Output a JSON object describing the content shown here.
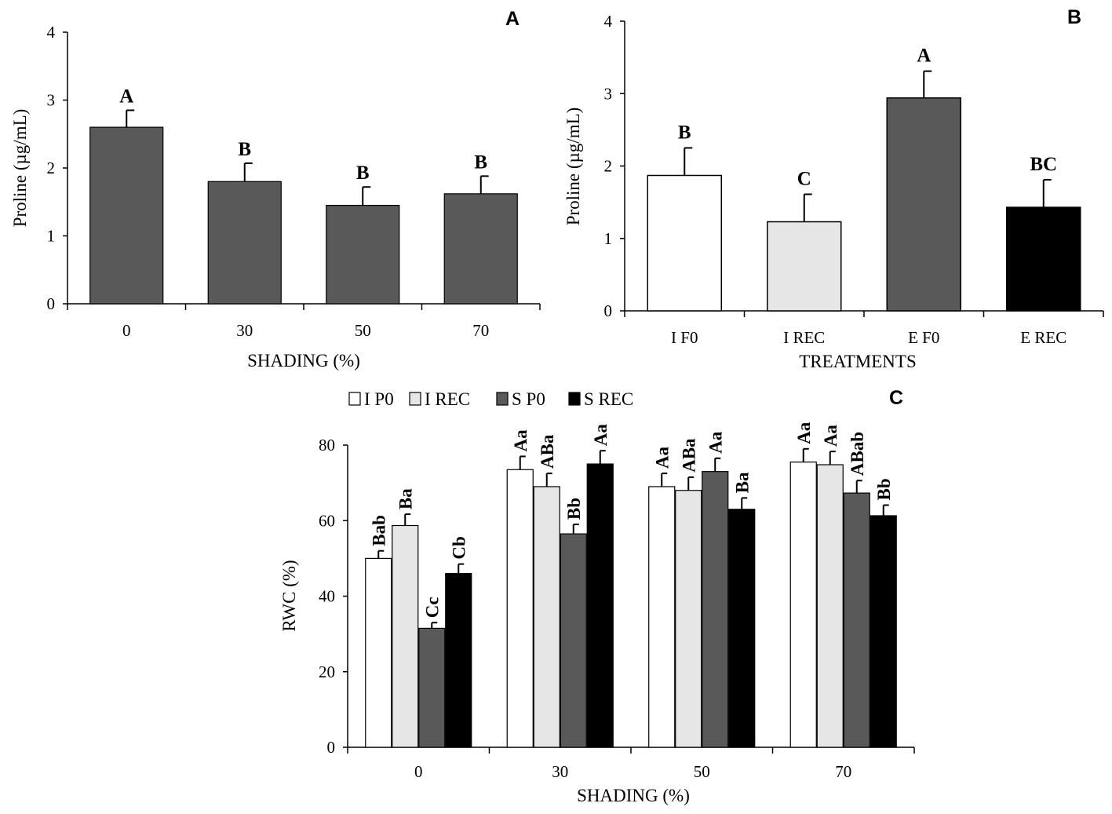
{
  "chart_data": [
    {
      "panel": "A",
      "type": "bar",
      "categories": [
        "0",
        "30",
        "50",
        "70"
      ],
      "values": [
        2.6,
        1.8,
        1.45,
        1.62
      ],
      "errors": [
        0.25,
        0.27,
        0.27,
        0.26
      ],
      "letters": [
        "A",
        "B",
        "B",
        "B"
      ],
      "xlabel": "SHADING (%)",
      "ylabel": "Proline (µg/mL)",
      "ylim": [
        0,
        4
      ],
      "yticks": [
        "0",
        "1",
        "2",
        "3",
        "4"
      ],
      "color": "#595959"
    },
    {
      "panel": "B",
      "type": "bar",
      "categories": [
        "I F0",
        "I REC",
        "E F0",
        "E REC"
      ],
      "values": [
        1.87,
        1.23,
        2.94,
        1.43
      ],
      "errors": [
        0.38,
        0.38,
        0.37,
        0.38
      ],
      "letters": [
        "B",
        "C",
        "A",
        "BC"
      ],
      "colors": [
        "#ffffff",
        "#e6e6e6",
        "#595959",
        "#000000"
      ],
      "xlabel": "TREATMENTS",
      "ylabel": "Proline (µg/mL)",
      "ylim": [
        0,
        4
      ],
      "yticks": [
        "0",
        "1",
        "2",
        "3",
        "4"
      ]
    },
    {
      "panel": "C",
      "type": "bar",
      "categories": [
        "0",
        "30",
        "50",
        "70"
      ],
      "series": [
        {
          "name": "I P0",
          "color": "#ffffff",
          "values": [
            50,
            73.5,
            69,
            75.5
          ],
          "errors": [
            2,
            3.5,
            3.5,
            3.5
          ],
          "letters": [
            "Bab",
            "Aa",
            "Aa",
            "Aa"
          ]
        },
        {
          "name": "I REC",
          "color": "#e6e6e6",
          "values": [
            58.7,
            69,
            68,
            74.8
          ],
          "errors": [
            3,
            3.5,
            3.5,
            3.5
          ],
          "letters": [
            "Ba",
            "ABa",
            "ABa",
            "Aa"
          ]
        },
        {
          "name": "S P0",
          "color": "#595959",
          "values": [
            31.5,
            56.5,
            73,
            67.3
          ],
          "errors": [
            1.5,
            2.5,
            3.5,
            3.3
          ],
          "letters": [
            "Cc",
            "Bb",
            "Aa",
            "ABab"
          ]
        },
        {
          "name": "S REC",
          "color": "#000000",
          "values": [
            46,
            75,
            63,
            61.3
          ],
          "errors": [
            2.5,
            3.5,
            3,
            2.8
          ],
          "letters": [
            "Cb",
            "Aa",
            "Ba",
            "Bb"
          ]
        }
      ],
      "xlabel": "SHADING (%)",
      "ylabel": "RWC  (%)",
      "ylim": [
        0,
        80
      ],
      "yticks": [
        "0",
        "20",
        "40",
        "60",
        "80"
      ],
      "legend_position": "top"
    }
  ]
}
